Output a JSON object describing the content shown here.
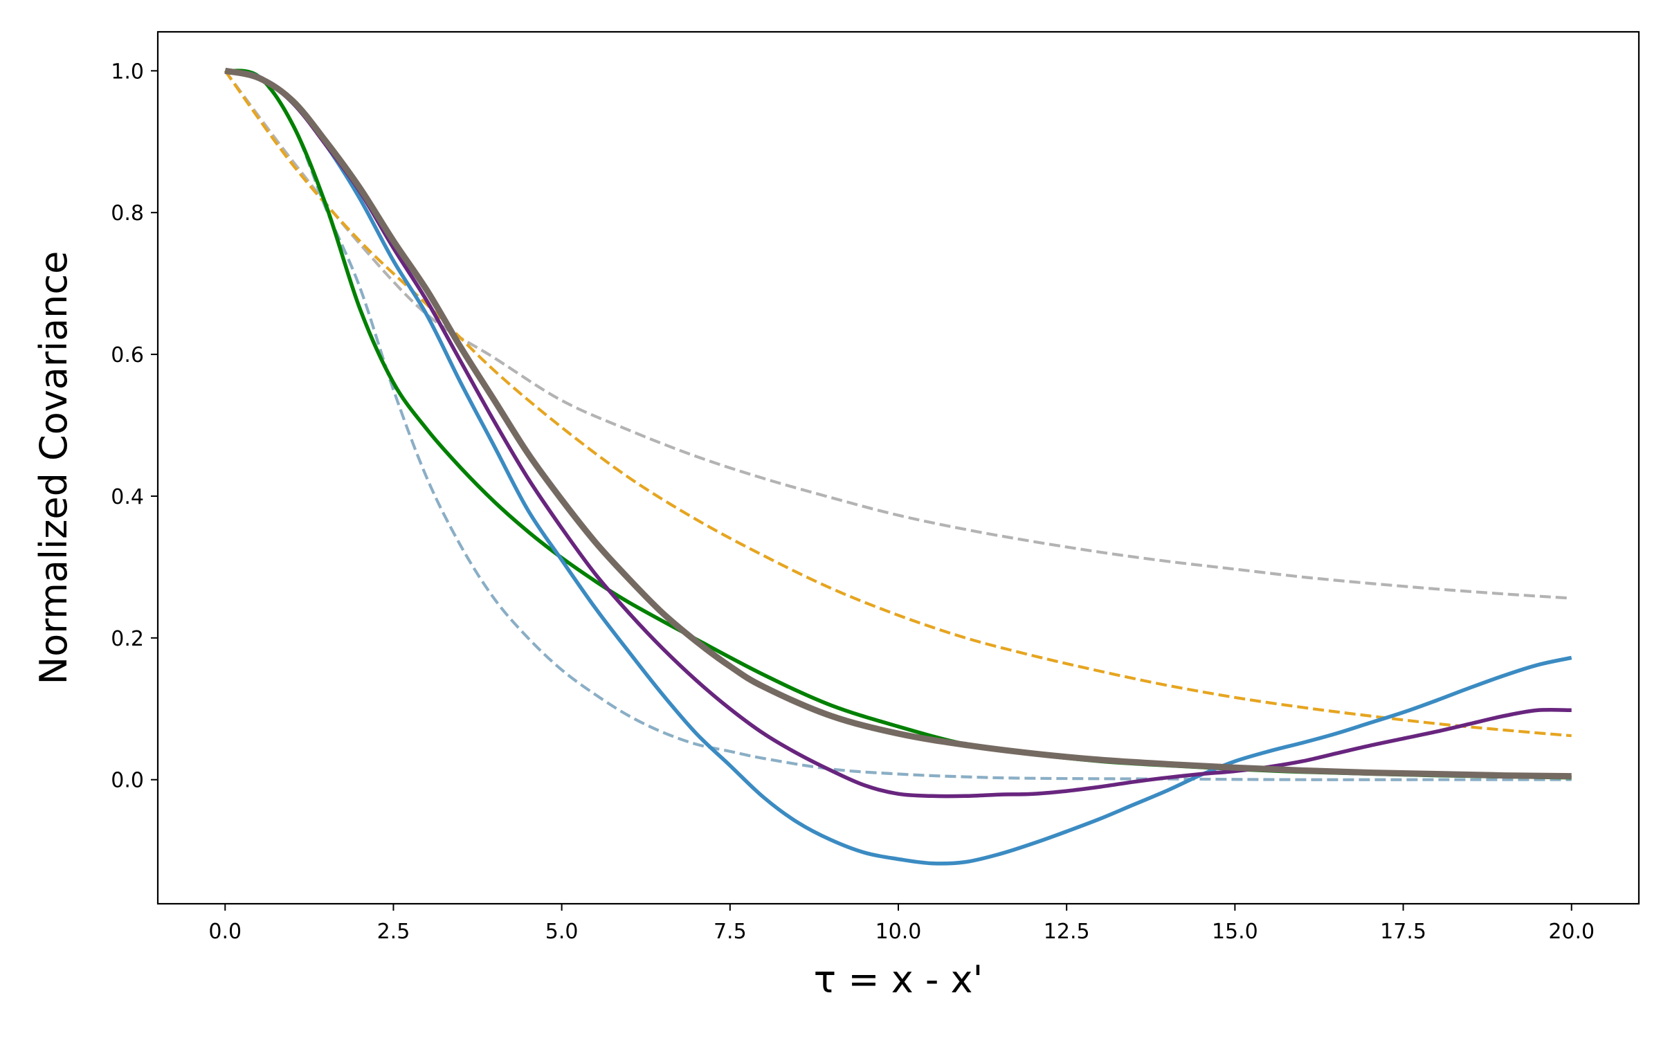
{
  "chart_data": {
    "type": "line",
    "title": "",
    "xlabel": "τ = x - x'",
    "ylabel": "Normalized Covariance",
    "xlim": [
      -1.0,
      21.0
    ],
    "ylim": [
      -0.175,
      1.055
    ],
    "xticks": [
      0.0,
      2.5,
      5.0,
      7.5,
      10.0,
      12.5,
      15.0,
      17.5,
      20.0
    ],
    "xtick_labels": [
      "0.0",
      "2.5",
      "5.0",
      "7.5",
      "10.0",
      "12.5",
      "15.0",
      "17.5",
      "20.0"
    ],
    "yticks": [
      0.0,
      0.2,
      0.4,
      0.6,
      0.8,
      1.0
    ],
    "ytick_labels": [
      "0.0",
      "0.2",
      "0.4",
      "0.6",
      "0.8",
      "1.0"
    ],
    "grid": false,
    "legend": "none",
    "series": [
      {
        "color": "#b3b3b3",
        "style": "dashed",
        "x": [
          0,
          1,
          2,
          3,
          4,
          5,
          6,
          7,
          8,
          9,
          10,
          11,
          12,
          13,
          14,
          15,
          16,
          17,
          18,
          19,
          20
        ],
        "y": [
          1.0,
          0.873,
          0.756,
          0.656,
          0.595,
          0.535,
          0.493,
          0.456,
          0.425,
          0.398,
          0.373,
          0.353,
          0.336,
          0.321,
          0.308,
          0.297,
          0.286,
          0.277,
          0.269,
          0.262,
          0.256
        ]
      },
      {
        "color": "#e6a520",
        "style": "dashed",
        "x": [
          0,
          1,
          2,
          3,
          4,
          5,
          6,
          7,
          8,
          9,
          10,
          11,
          12,
          13,
          14,
          15,
          16,
          17,
          18,
          19,
          20
        ],
        "y": [
          1.0,
          0.868,
          0.76,
          0.67,
          0.577,
          0.497,
          0.426,
          0.367,
          0.316,
          0.27,
          0.232,
          0.2,
          0.175,
          0.153,
          0.133,
          0.116,
          0.102,
          0.09,
          0.079,
          0.07,
          0.062
        ]
      },
      {
        "color": "#8aaec5",
        "style": "dashed",
        "x": [
          0,
          0.5,
          1,
          1.5,
          2,
          2.5,
          3,
          3.5,
          4,
          4.5,
          5,
          5.5,
          6,
          6.5,
          7,
          7.5,
          8,
          9,
          10,
          11,
          12,
          14,
          16,
          18,
          20
        ],
        "y": [
          1.0,
          0.99,
          0.925,
          0.805,
          0.695,
          0.55,
          0.425,
          0.33,
          0.255,
          0.2,
          0.155,
          0.12,
          0.09,
          0.067,
          0.05,
          0.04,
          0.03,
          0.015,
          0.008,
          0.004,
          0.002,
          0.001,
          0.0,
          0.0,
          0.0
        ]
      },
      {
        "color": "#008000",
        "style": "solid",
        "x": [
          0,
          0.5,
          1,
          1.5,
          2,
          2.5,
          3,
          3.5,
          4,
          4.5,
          5,
          5.5,
          6,
          7,
          8,
          9,
          10,
          11,
          12,
          13,
          14,
          15,
          16,
          18,
          20
        ],
        "y": [
          1.0,
          0.992,
          0.925,
          0.81,
          0.665,
          0.56,
          0.494,
          0.44,
          0.392,
          0.35,
          0.313,
          0.28,
          0.25,
          0.198,
          0.148,
          0.105,
          0.075,
          0.05,
          0.036,
          0.026,
          0.02,
          0.015,
          0.011,
          0.006,
          0.003
        ]
      },
      {
        "color": "#3b8bc2",
        "style": "solid",
        "x": [
          0,
          0.5,
          1,
          1.5,
          2,
          2.5,
          3,
          3.5,
          4,
          4.5,
          5,
          5.5,
          6,
          6.5,
          7,
          7.5,
          8,
          8.5,
          9,
          9.5,
          10,
          10.5,
          11,
          11.5,
          12,
          12.5,
          13,
          13.5,
          14,
          14.5,
          15,
          15.5,
          16,
          16.5,
          17,
          17.5,
          18,
          18.5,
          19,
          19.5,
          20
        ],
        "y": [
          1.0,
          0.992,
          0.955,
          0.895,
          0.82,
          0.732,
          0.655,
          0.56,
          0.47,
          0.38,
          0.31,
          0.242,
          0.18,
          0.12,
          0.065,
          0.02,
          -0.025,
          -0.06,
          -0.085,
          -0.103,
          -0.112,
          -0.118,
          -0.116,
          -0.105,
          -0.09,
          -0.073,
          -0.055,
          -0.035,
          -0.015,
          0.007,
          0.026,
          0.04,
          0.052,
          0.065,
          0.08,
          0.095,
          0.112,
          0.13,
          0.147,
          0.162,
          0.172
        ]
      },
      {
        "color": "#68257e",
        "style": "solid",
        "x": [
          0,
          0.5,
          1,
          1.5,
          2,
          2.5,
          3,
          3.5,
          4,
          4.5,
          5,
          5.5,
          6,
          6.5,
          7,
          7.5,
          8,
          8.5,
          9,
          9.5,
          10,
          10.5,
          11,
          11.5,
          12,
          12.5,
          13,
          13.5,
          14,
          14.5,
          15,
          15.5,
          16,
          16.5,
          17,
          17.5,
          18,
          18.5,
          19,
          19.5,
          20
        ],
        "y": [
          1.0,
          0.99,
          0.955,
          0.895,
          0.83,
          0.75,
          0.675,
          0.59,
          0.505,
          0.425,
          0.355,
          0.29,
          0.235,
          0.185,
          0.14,
          0.1,
          0.065,
          0.037,
          0.013,
          -0.008,
          -0.02,
          -0.023,
          -0.023,
          -0.021,
          -0.02,
          -0.016,
          -0.01,
          -0.003,
          0.003,
          0.008,
          0.012,
          0.018,
          0.026,
          0.037,
          0.048,
          0.058,
          0.068,
          0.079,
          0.09,
          0.098,
          0.098
        ]
      },
      {
        "color": "#756a62",
        "style": "solid",
        "bold": true,
        "x": [
          0,
          0.5,
          1,
          1.5,
          2,
          2.5,
          3,
          3.5,
          4,
          4.5,
          5,
          5.5,
          6,
          6.5,
          7,
          7.5,
          8,
          9,
          10,
          11,
          12,
          13,
          14,
          15,
          16,
          17,
          18,
          19,
          20
        ],
        "y": [
          1.0,
          0.99,
          0.958,
          0.9,
          0.835,
          0.76,
          0.69,
          0.61,
          0.535,
          0.46,
          0.395,
          0.335,
          0.283,
          0.235,
          0.195,
          0.16,
          0.131,
          0.09,
          0.065,
          0.049,
          0.037,
          0.028,
          0.022,
          0.017,
          0.013,
          0.01,
          0.008,
          0.006,
          0.005
        ]
      }
    ]
  }
}
